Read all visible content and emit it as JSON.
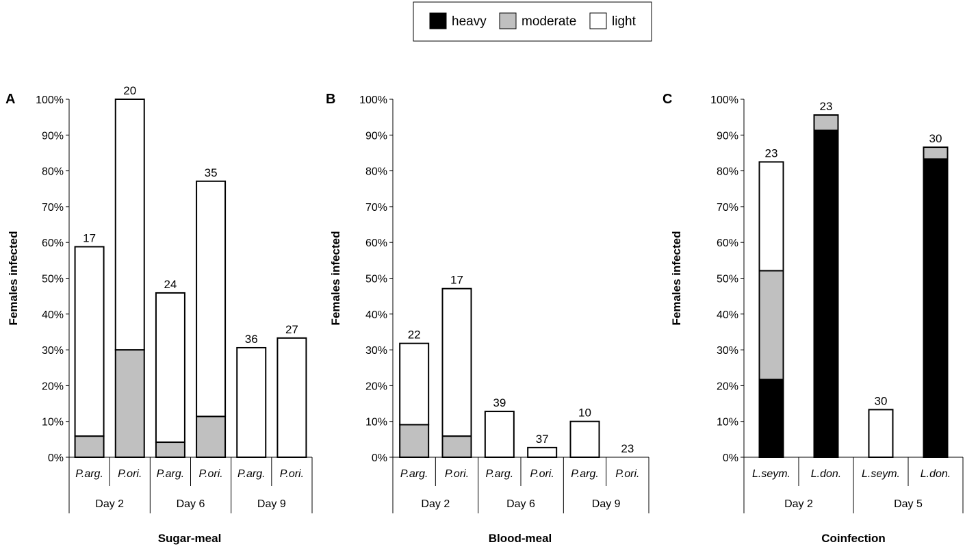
{
  "legend": {
    "items": [
      {
        "label": "heavy",
        "color": "#000000"
      },
      {
        "label": "moderate",
        "color": "#c0c0c0"
      },
      {
        "label": "light",
        "color": "#ffffff"
      }
    ]
  },
  "chart_data": [
    {
      "type": "bar",
      "panel": "A",
      "title": "Sugar-meal",
      "ylabel": "Females infected",
      "ylim": [
        0,
        100
      ],
      "yticks": [
        "0%",
        "10%",
        "20%",
        "30%",
        "40%",
        "50%",
        "60%",
        "70%",
        "80%",
        "90%",
        "100%"
      ],
      "stacked": true,
      "groups": [
        "Day 2",
        "Day 6",
        "Day 9"
      ],
      "categories": [
        "P.arg.",
        "P.ori.",
        "P.arg.",
        "P.ori.",
        "P.arg.",
        "P.ori."
      ],
      "counts": [
        "17",
        "20",
        "24",
        "35",
        "36",
        "27"
      ],
      "series": [
        {
          "name": "heavy",
          "values": [
            0,
            0,
            0,
            0,
            0,
            0
          ]
        },
        {
          "name": "moderate",
          "values": [
            5.9,
            30,
            4.2,
            11.4,
            0,
            0
          ]
        },
        {
          "name": "light",
          "values": [
            52.9,
            70,
            41.7,
            65.7,
            30.6,
            33.3
          ]
        }
      ]
    },
    {
      "type": "bar",
      "panel": "B",
      "title": "Blood-meal",
      "ylabel": "Females infected",
      "ylim": [
        0,
        100
      ],
      "yticks": [
        "0%",
        "10%",
        "20%",
        "30%",
        "40%",
        "50%",
        "60%",
        "70%",
        "80%",
        "90%",
        "100%"
      ],
      "stacked": true,
      "groups": [
        "Day 2",
        "Day 6",
        "Day 9"
      ],
      "categories": [
        "P.arg.",
        "P.ori.",
        "P.arg.",
        "P.ori.",
        "P.arg.",
        "P.ori."
      ],
      "counts": [
        "22",
        "17",
        "39",
        "37",
        "10",
        "23"
      ],
      "series": [
        {
          "name": "heavy",
          "values": [
            0,
            0,
            0,
            0,
            0,
            0
          ]
        },
        {
          "name": "moderate",
          "values": [
            9.1,
            5.9,
            0,
            0,
            0,
            0
          ]
        },
        {
          "name": "light",
          "values": [
            22.7,
            41.2,
            12.8,
            2.7,
            10,
            0
          ]
        }
      ]
    },
    {
      "type": "bar",
      "panel": "C",
      "title": "Coinfection",
      "ylabel": "Females infected",
      "ylim": [
        0,
        100
      ],
      "yticks": [
        "0%",
        "10%",
        "20%",
        "30%",
        "40%",
        "50%",
        "60%",
        "70%",
        "80%",
        "90%",
        "100%"
      ],
      "stacked": true,
      "groups": [
        "Day 2",
        "Day 5"
      ],
      "categories": [
        "L.seym.",
        "L.don.",
        "L.seym.",
        "L.don."
      ],
      "counts": [
        "23",
        "23",
        "30",
        "30"
      ],
      "series": [
        {
          "name": "heavy",
          "values": [
            21.7,
            91.3,
            0,
            83.3
          ]
        },
        {
          "name": "moderate",
          "values": [
            30.4,
            4.3,
            0,
            3.3
          ]
        },
        {
          "name": "light",
          "values": [
            30.4,
            0,
            13.3,
            0
          ]
        }
      ]
    }
  ]
}
